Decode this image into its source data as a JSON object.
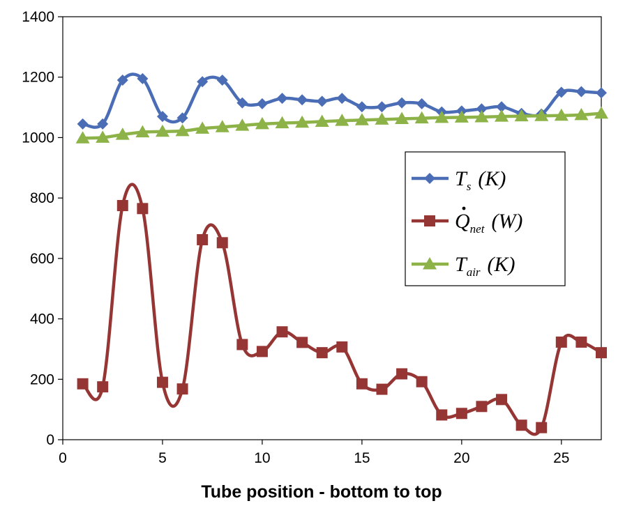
{
  "chart_data": {
    "type": "line",
    "title": "",
    "xlabel": "Tube position - bottom to top",
    "ylabel": "",
    "xlim": [
      0,
      27
    ],
    "ylim": [
      0,
      1400
    ],
    "x_ticks": [
      0,
      5,
      10,
      15,
      20,
      25
    ],
    "y_ticks": [
      0,
      200,
      400,
      600,
      800,
      1000,
      1200,
      1400
    ],
    "grid": false,
    "legend_position": "right",
    "x": [
      1,
      2,
      3,
      4,
      5,
      6,
      7,
      8,
      9,
      10,
      11,
      12,
      13,
      14,
      15,
      16,
      17,
      18,
      19,
      20,
      21,
      22,
      23,
      24,
      25,
      26,
      27
    ],
    "series": [
      {
        "name": "Ts (K)",
        "legend_main": "T",
        "legend_sub": "s",
        "legend_unit": "(K)",
        "color": "#4a6db5",
        "marker": "diamond",
        "values": [
          1045,
          1045,
          1190,
          1195,
          1070,
          1065,
          1185,
          1190,
          1115,
          1112,
          1130,
          1125,
          1120,
          1130,
          1102,
          1102,
          1115,
          1112,
          1085,
          1088,
          1095,
          1102,
          1080,
          1078,
          1150,
          1152,
          1148
        ]
      },
      {
        "name": "Qnet (W)",
        "legend_main": "Q",
        "legend_sub": "net",
        "legend_unit": "(W)",
        "color": "#963634",
        "marker": "square",
        "values": [
          185,
          175,
          775,
          765,
          190,
          168,
          662,
          652,
          315,
          292,
          357,
          322,
          288,
          307,
          185,
          167,
          218,
          192,
          82,
          87,
          110,
          133,
          48,
          40,
          323,
          323,
          288
        ]
      },
      {
        "name": "Tair (K)",
        "legend_main": "T",
        "legend_sub": "air",
        "legend_unit": "(K)",
        "color": "#8db348",
        "marker": "triangle",
        "values": [
          998,
          1000,
          1010,
          1018,
          1020,
          1022,
          1030,
          1035,
          1040,
          1045,
          1048,
          1050,
          1053,
          1056,
          1058,
          1060,
          1062,
          1064,
          1066,
          1067,
          1068,
          1070,
          1071,
          1072,
          1073,
          1075,
          1080
        ]
      }
    ]
  }
}
